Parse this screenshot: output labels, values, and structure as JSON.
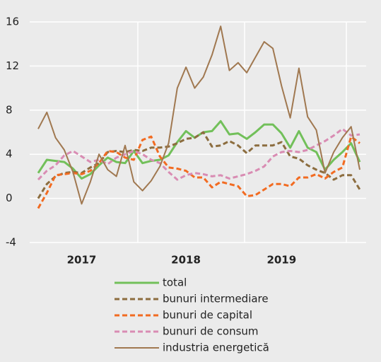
{
  "chart_data": {
    "type": "line",
    "categories": [
      null,
      null,
      null,
      null,
      null,
      "2017",
      null,
      null,
      null,
      null,
      null,
      null,
      null,
      null,
      null,
      null,
      null,
      "2018",
      null,
      null,
      null,
      null,
      null,
      null,
      null,
      null,
      null,
      null,
      "2019",
      null,
      null,
      null,
      null,
      null,
      null,
      null,
      null,
      null
    ],
    "ylim": [
      -4,
      16
    ],
    "yticks": [
      -4,
      0,
      4,
      8,
      12,
      16
    ],
    "grid": true,
    "series": [
      {
        "name": "total",
        "color": "#72c05a",
        "dash": false,
        "width": 3,
        "values": [
          2.3,
          3.5,
          3.4,
          3.3,
          2.7,
          1.8,
          2.2,
          3.0,
          3.7,
          3.3,
          3.2,
          4.3,
          3.2,
          3.4,
          3.5,
          3.9,
          5.1,
          6.1,
          5.5,
          6.0,
          6.1,
          7.0,
          5.8,
          5.9,
          5.4,
          6.0,
          6.7,
          6.7,
          5.9,
          4.6,
          6.1,
          4.6,
          4.2,
          2.6,
          3.5,
          4.2,
          5.0,
          3.3
        ]
      },
      {
        "name": "bunuri intermediare",
        "color": "#8c6d3f",
        "dash": true,
        "width": 3,
        "values": [
          0.0,
          1.3,
          2.0,
          2.3,
          2.4,
          2.3,
          2.8,
          3.2,
          4.2,
          4.3,
          4.2,
          4.4,
          4.3,
          4.6,
          4.6,
          4.7,
          5.0,
          5.4,
          5.5,
          6.0,
          4.7,
          4.8,
          5.2,
          4.8,
          4.1,
          4.8,
          4.8,
          4.8,
          5.1,
          3.8,
          3.6,
          3.0,
          2.6,
          2.3,
          1.7,
          2.1,
          2.1,
          0.8
        ]
      },
      {
        "name": "bunuri de capital",
        "color": "#f26b21",
        "dash": true,
        "width": 3,
        "values": [
          -0.9,
          0.5,
          2.1,
          2.2,
          2.3,
          2.2,
          2.5,
          3.2,
          4.3,
          4.2,
          3.7,
          3.5,
          5.3,
          5.6,
          3.8,
          2.8,
          2.7,
          2.5,
          1.9,
          1.9,
          1.0,
          1.5,
          1.3,
          1.1,
          0.2,
          0.3,
          0.8,
          1.3,
          1.3,
          1.1,
          1.9,
          1.9,
          2.2,
          1.8,
          2.4,
          2.8,
          5.6,
          5.0
        ]
      },
      {
        "name": "bunuri de consum",
        "color": "#d98cb3",
        "dash": true,
        "width": 3,
        "values": [
          1.7,
          2.5,
          3.0,
          3.9,
          4.3,
          3.8,
          3.3,
          3.5,
          3.1,
          3.7,
          4.0,
          4.3,
          4.0,
          3.5,
          3.2,
          2.4,
          1.7,
          2.1,
          2.3,
          2.2,
          2.0,
          2.1,
          1.8,
          2.0,
          2.2,
          2.5,
          2.9,
          3.8,
          4.2,
          4.3,
          4.2,
          4.4,
          4.8,
          5.2,
          5.7,
          6.3,
          5.7,
          5.8
        ]
      },
      {
        "name": "industria energetică",
        "color": "#a07850",
        "dash": false,
        "width": 2,
        "values": [
          6.3,
          7.8,
          5.5,
          4.4,
          2.4,
          -0.5,
          1.5,
          4.0,
          2.6,
          2.0,
          4.8,
          1.5,
          0.7,
          1.6,
          2.9,
          5.0,
          10.0,
          11.9,
          10.0,
          11.0,
          13.0,
          15.6,
          11.6,
          12.3,
          11.4,
          12.8,
          14.2,
          13.6,
          10.2,
          7.3,
          11.8,
          7.4,
          6.2,
          2.3,
          4.2,
          5.5,
          6.5,
          2.6
        ]
      }
    ]
  }
}
